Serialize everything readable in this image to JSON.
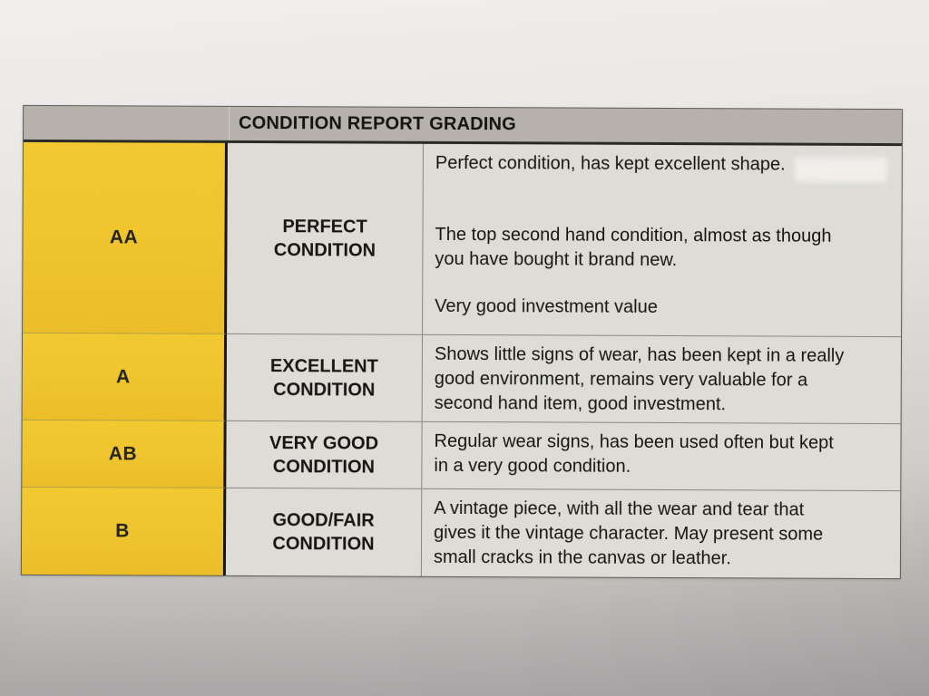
{
  "table": {
    "header_title": "CONDITION REPORT GRADING",
    "rows": [
      {
        "code": "AA",
        "grade_label": "PERFECT\nCONDITION",
        "paragraphs": [
          "Perfect condition, has kept excellent shape.",
          "The top second hand condition, almost as though\nyou have bought it brand new.",
          "Very good investment value"
        ]
      },
      {
        "code": "A",
        "grade_label": "EXCELLENT\nCONDITION",
        "paragraphs": [
          "Shows little signs of wear, has been kept in a really\ngood environment, remains very valuable for a\nsecond hand item, good investment."
        ]
      },
      {
        "code": "AB",
        "grade_label": "VERY GOOD\nCONDITION",
        "paragraphs": [
          "Regular wear signs, has been used often but kept\nin a very good condition."
        ]
      },
      {
        "code": "B",
        "grade_label": "GOOD/FAIR\nCONDITION",
        "paragraphs": [
          "A vintage piece, with all the wear and tear that\ngives it the vintage character. May present some\nsmall cracks in the canvas or leather."
        ]
      }
    ],
    "colors": {
      "grade_column_yellow": "#efc42d",
      "header_gray": "#b6b2ab",
      "cell_background": "#dedcd7",
      "text": "#16150f"
    }
  }
}
